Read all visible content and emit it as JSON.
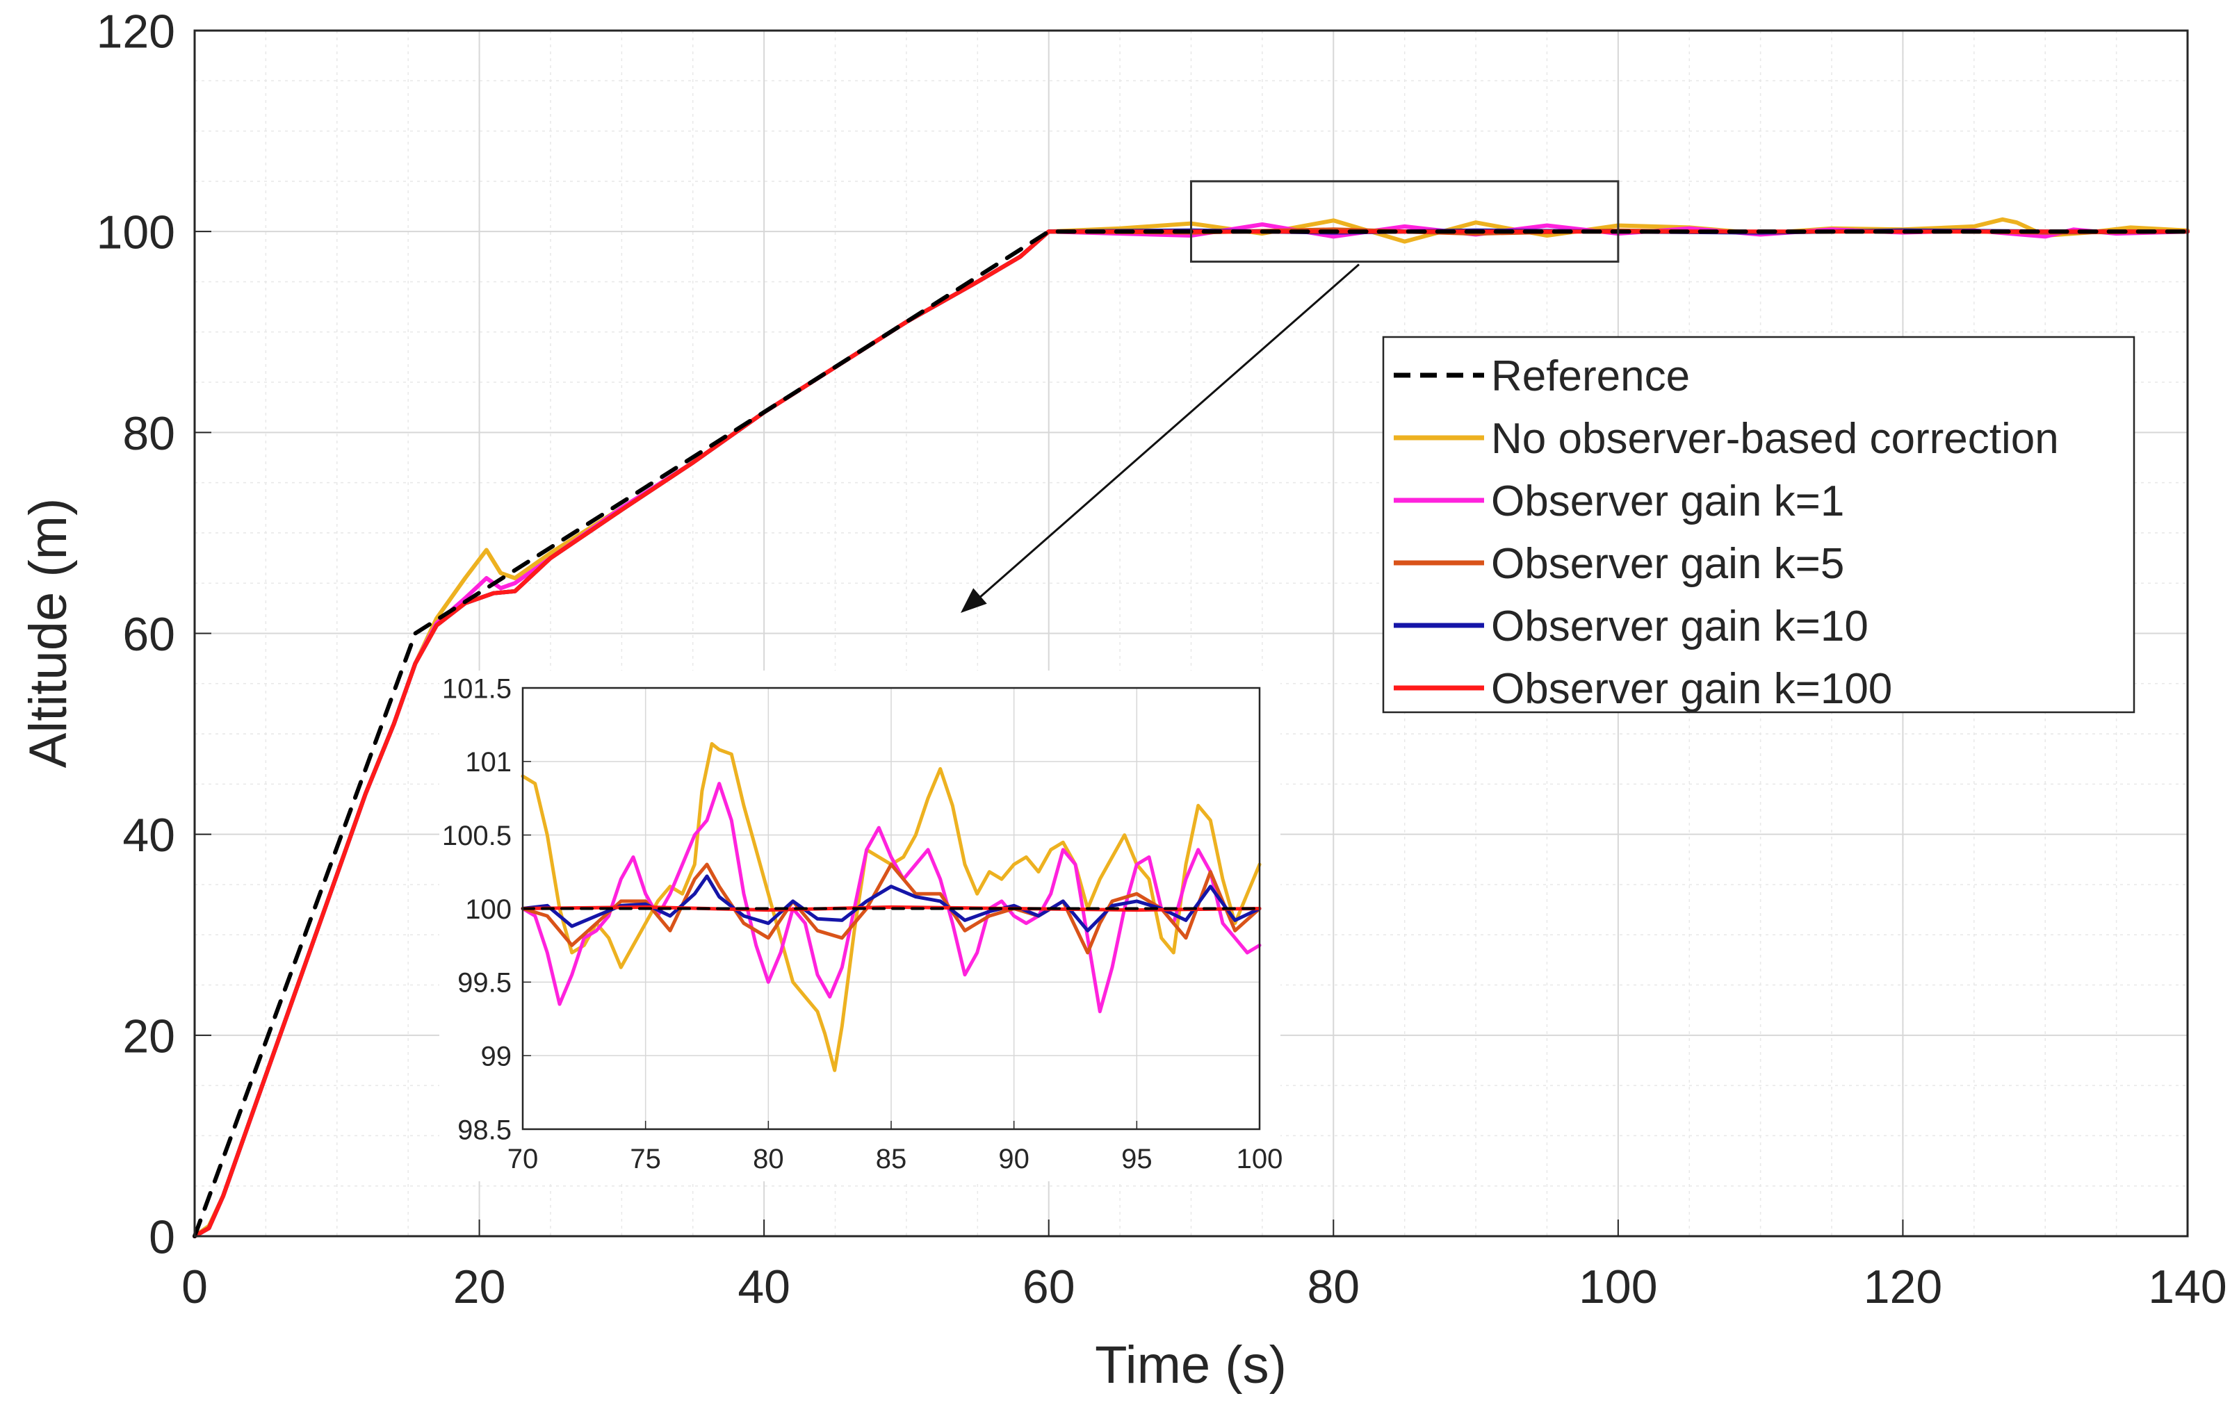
{
  "chart_data": {
    "type": "line",
    "xlabel": "Time (s)",
    "ylabel": "Altitude (m)",
    "xlim": [
      0,
      140
    ],
    "ylim": [
      0,
      120
    ],
    "xticks": [
      0,
      20,
      40,
      60,
      80,
      100,
      120,
      140
    ],
    "yticks": [
      0,
      20,
      40,
      60,
      80,
      100,
      120
    ],
    "grid": true,
    "legend_position": "right, middle",
    "series": [
      {
        "name": "Reference",
        "color": "#000000",
        "dash": true,
        "x": [
          0,
          15.5,
          60,
          140
        ],
        "y": [
          0,
          60,
          100,
          100
        ]
      },
      {
        "name": "No observer-based correction",
        "color": "#EDB120",
        "x": [
          0,
          1,
          2,
          4,
          6,
          8,
          10,
          12,
          14,
          15.5,
          17,
          19,
          20.5,
          21.5,
          22.5,
          25,
          30,
          35,
          40,
          45,
          50,
          55,
          58,
          60,
          65,
          70,
          75,
          80,
          85,
          90,
          95,
          100,
          105,
          110,
          115,
          120,
          125,
          127,
          128,
          130,
          133,
          136,
          140
        ],
        "y": [
          0,
          1,
          4,
          12,
          20,
          28,
          36,
          44,
          51,
          57,
          61.5,
          65.5,
          68.3,
          66,
          65.5,
          68,
          72.5,
          77,
          82,
          86.5,
          91,
          95,
          97.5,
          100,
          100.3,
          100.8,
          99.8,
          101.1,
          99,
          100.9,
          99.6,
          100.6,
          100.4,
          99.8,
          100.3,
          100.2,
          100.5,
          101.2,
          100.9,
          99.6,
          99.9,
          100.4,
          100.1
        ]
      },
      {
        "name": "Observer gain k=1",
        "color": "#FF22DD",
        "x": [
          0,
          1,
          2,
          4,
          6,
          8,
          10,
          12,
          14,
          15.5,
          17,
          19,
          20.5,
          21.5,
          22.5,
          25,
          30,
          35,
          40,
          45,
          50,
          55,
          58,
          60,
          65,
          70,
          75,
          80,
          85,
          90,
          95,
          100,
          105,
          110,
          115,
          120,
          125,
          130,
          132,
          135,
          140
        ],
        "y": [
          0,
          0.8,
          4,
          12,
          20,
          28,
          36,
          44,
          51,
          57,
          61,
          63.5,
          65.5,
          64.5,
          65,
          67.5,
          72.5,
          77,
          82,
          86.5,
          91,
          95,
          97.5,
          100,
          99.8,
          99.6,
          100.7,
          99.5,
          100.5,
          99.7,
          100.6,
          99.8,
          100.3,
          99.7,
          100.2,
          99.9,
          100.1,
          99.5,
          100.2,
          99.8,
          100
        ]
      },
      {
        "name": "Observer gain k=5",
        "color": "#D95319",
        "x": [
          0,
          1,
          2,
          4,
          6,
          8,
          10,
          12,
          14,
          15.5,
          17,
          19,
          21,
          22.5,
          25,
          30,
          35,
          40,
          45,
          50,
          55,
          58,
          60,
          70,
          80,
          90,
          100,
          110,
          120,
          130,
          140
        ],
        "y": [
          0,
          0.8,
          4,
          12,
          20,
          28,
          36,
          44,
          51,
          57,
          60.8,
          63,
          64,
          64.2,
          67.5,
          72.3,
          77,
          82,
          86.5,
          91,
          95,
          97.5,
          100,
          99.9,
          100.2,
          99.8,
          100.1,
          99.9,
          100.1,
          99.9,
          100
        ]
      },
      {
        "name": "Observer gain k=10",
        "color": "#1515A8",
        "x": [
          0,
          1,
          2,
          4,
          6,
          8,
          10,
          12,
          14,
          15.5,
          17,
          19,
          21,
          22.5,
          25,
          30,
          35,
          40,
          45,
          50,
          55,
          58,
          60,
          70,
          80,
          90,
          100,
          110,
          120,
          130,
          140
        ],
        "y": [
          0,
          0.8,
          4,
          12,
          20,
          28,
          36,
          44,
          51,
          57,
          60.8,
          63,
          64,
          64.2,
          67.5,
          72.3,
          77,
          82,
          86.5,
          91,
          95,
          97.5,
          100,
          100.1,
          99.9,
          100.1,
          100,
          99.9,
          100.1,
          100,
          100
        ]
      },
      {
        "name": "Observer gain k=100",
        "color": "#FF1A1A",
        "x": [
          0,
          1,
          2,
          4,
          6,
          8,
          10,
          12,
          14,
          15.5,
          17,
          19,
          21,
          22.5,
          25,
          30,
          35,
          40,
          45,
          50,
          55,
          58,
          60,
          140
        ],
        "y": [
          0,
          0.8,
          4,
          12,
          20,
          28,
          36,
          44,
          51,
          57,
          60.8,
          63,
          64,
          64.2,
          67.5,
          72.3,
          77,
          82,
          86.5,
          91,
          95,
          97.5,
          100,
          100
        ]
      }
    ],
    "zoom_box": {
      "x": [
        70,
        100
      ],
      "y": [
        97,
        105
      ]
    },
    "inset": {
      "xlim": [
        70,
        100
      ],
      "ylim": [
        98.5,
        101.5
      ],
      "xticks": [
        70,
        75,
        80,
        85,
        90,
        95,
        100
      ],
      "yticks": [
        98.5,
        99,
        99.5,
        100,
        100.5,
        101,
        101.5
      ],
      "series": [
        {
          "name": "Reference",
          "color": "#000000",
          "dash": true,
          "x": [
            70,
            100
          ],
          "y": [
            100,
            100
          ]
        },
        {
          "name": "No observer-based correction",
          "color": "#EDB120",
          "x": [
            70,
            70.5,
            71,
            71.5,
            72,
            72.5,
            73,
            73.5,
            74,
            74.5,
            75,
            75.5,
            76,
            76.5,
            77,
            77.3,
            77.7,
            78,
            78.5,
            79,
            79.5,
            80,
            80.5,
            81,
            81.5,
            82,
            82.3,
            82.7,
            83,
            83.5,
            84,
            84.5,
            85,
            85.5,
            86,
            86.5,
            87,
            87.5,
            88,
            88.5,
            89,
            89.5,
            90,
            90.5,
            91,
            91.5,
            92,
            92.5,
            93,
            93.5,
            94,
            94.5,
            95,
            95.5,
            96,
            96.5,
            97,
            97.5,
            98,
            98.5,
            99,
            99.5,
            100
          ],
          "y": [
            100.9,
            100.85,
            100.5,
            100.0,
            99.7,
            99.75,
            99.9,
            99.8,
            99.6,
            99.75,
            99.9,
            100.05,
            100.15,
            100.1,
            100.3,
            100.8,
            101.12,
            101.08,
            101.05,
            100.7,
            100.4,
            100.1,
            99.8,
            99.5,
            99.4,
            99.3,
            99.15,
            98.9,
            99.2,
            99.85,
            100.4,
            100.35,
            100.3,
            100.35,
            100.5,
            100.75,
            100.95,
            100.7,
            100.3,
            100.1,
            100.25,
            100.2,
            100.3,
            100.35,
            100.25,
            100.4,
            100.45,
            100.3,
            100.0,
            100.2,
            100.35,
            100.5,
            100.3,
            100.2,
            99.8,
            99.7,
            100.3,
            100.7,
            100.6,
            100.2,
            99.9,
            100.1,
            100.3
          ]
        },
        {
          "name": "Observer gain k=1",
          "color": "#FF22DD",
          "x": [
            70,
            70.5,
            71,
            71.5,
            72,
            72.5,
            73,
            73.5,
            74,
            74.5,
            75,
            75.5,
            76,
            76.5,
            77,
            77.5,
            78,
            78.5,
            79,
            79.5,
            80,
            80.5,
            81,
            81.5,
            82,
            82.5,
            83,
            83.5,
            84,
            84.5,
            85,
            85.5,
            86,
            86.5,
            87,
            87.5,
            88,
            88.5,
            89,
            89.5,
            90,
            90.5,
            91,
            91.5,
            92,
            92.5,
            93,
            93.5,
            94,
            94.5,
            95,
            95.5,
            96,
            96.5,
            97,
            97.5,
            98,
            98.5,
            99,
            99.5,
            100
          ],
          "y": [
            100,
            99.95,
            99.7,
            99.35,
            99.55,
            99.8,
            99.85,
            99.95,
            100.2,
            100.35,
            100.1,
            99.95,
            100.1,
            100.3,
            100.5,
            100.6,
            100.85,
            100.6,
            100.1,
            99.75,
            99.5,
            99.7,
            100.0,
            99.9,
            99.55,
            99.4,
            99.6,
            100.0,
            100.4,
            100.55,
            100.35,
            100.2,
            100.3,
            100.4,
            100.2,
            99.9,
            99.55,
            99.7,
            100.0,
            100.05,
            99.95,
            99.9,
            99.95,
            100.1,
            100.4,
            100.3,
            99.8,
            99.3,
            99.6,
            100.0,
            100.3,
            100.35,
            100.0,
            99.9,
            100.2,
            100.4,
            100.25,
            99.9,
            99.8,
            99.7,
            99.75
          ]
        },
        {
          "name": "Observer gain k=5",
          "color": "#D95319",
          "x": [
            70,
            71,
            72,
            73,
            74,
            75,
            76,
            77,
            77.5,
            78,
            79,
            80,
            81,
            82,
            83,
            84,
            85,
            86,
            87,
            88,
            89,
            90,
            91,
            92,
            93,
            93.5,
            94,
            95,
            96,
            97,
            98,
            99,
            100
          ],
          "y": [
            100,
            99.95,
            99.75,
            99.9,
            100.05,
            100.05,
            99.85,
            100.2,
            100.3,
            100.15,
            99.9,
            99.8,
            100.05,
            99.85,
            99.8,
            100.0,
            100.3,
            100.1,
            100.1,
            99.85,
            99.95,
            100.0,
            99.95,
            100.05,
            99.7,
            99.9,
            100.05,
            100.1,
            100.0,
            99.8,
            100.25,
            99.85,
            100.0
          ]
        },
        {
          "name": "Observer gain k=10",
          "color": "#1515A8",
          "x": [
            70,
            71,
            72,
            73,
            74,
            75,
            76,
            77,
            77.5,
            78,
            79,
            80,
            81,
            82,
            83,
            84,
            85,
            86,
            87,
            88,
            89,
            90,
            91,
            92,
            93,
            94,
            95,
            96,
            97,
            98,
            99,
            100
          ],
          "y": [
            100,
            100.02,
            99.88,
            99.95,
            100.02,
            100.03,
            99.95,
            100.1,
            100.22,
            100.08,
            99.95,
            99.9,
            100.05,
            99.93,
            99.92,
            100.05,
            100.15,
            100.08,
            100.05,
            99.92,
            99.98,
            100.02,
            99.95,
            100.05,
            99.85,
            100.02,
            100.05,
            100.0,
            99.92,
            100.15,
            99.92,
            100.0
          ]
        },
        {
          "name": "Observer gain k=100",
          "color": "#FF1A1A",
          "x": [
            70,
            75,
            80,
            85,
            90,
            95,
            100
          ],
          "y": [
            100,
            100.01,
            99.99,
            100.01,
            100,
            99.99,
            100
          ]
        }
      ]
    }
  }
}
